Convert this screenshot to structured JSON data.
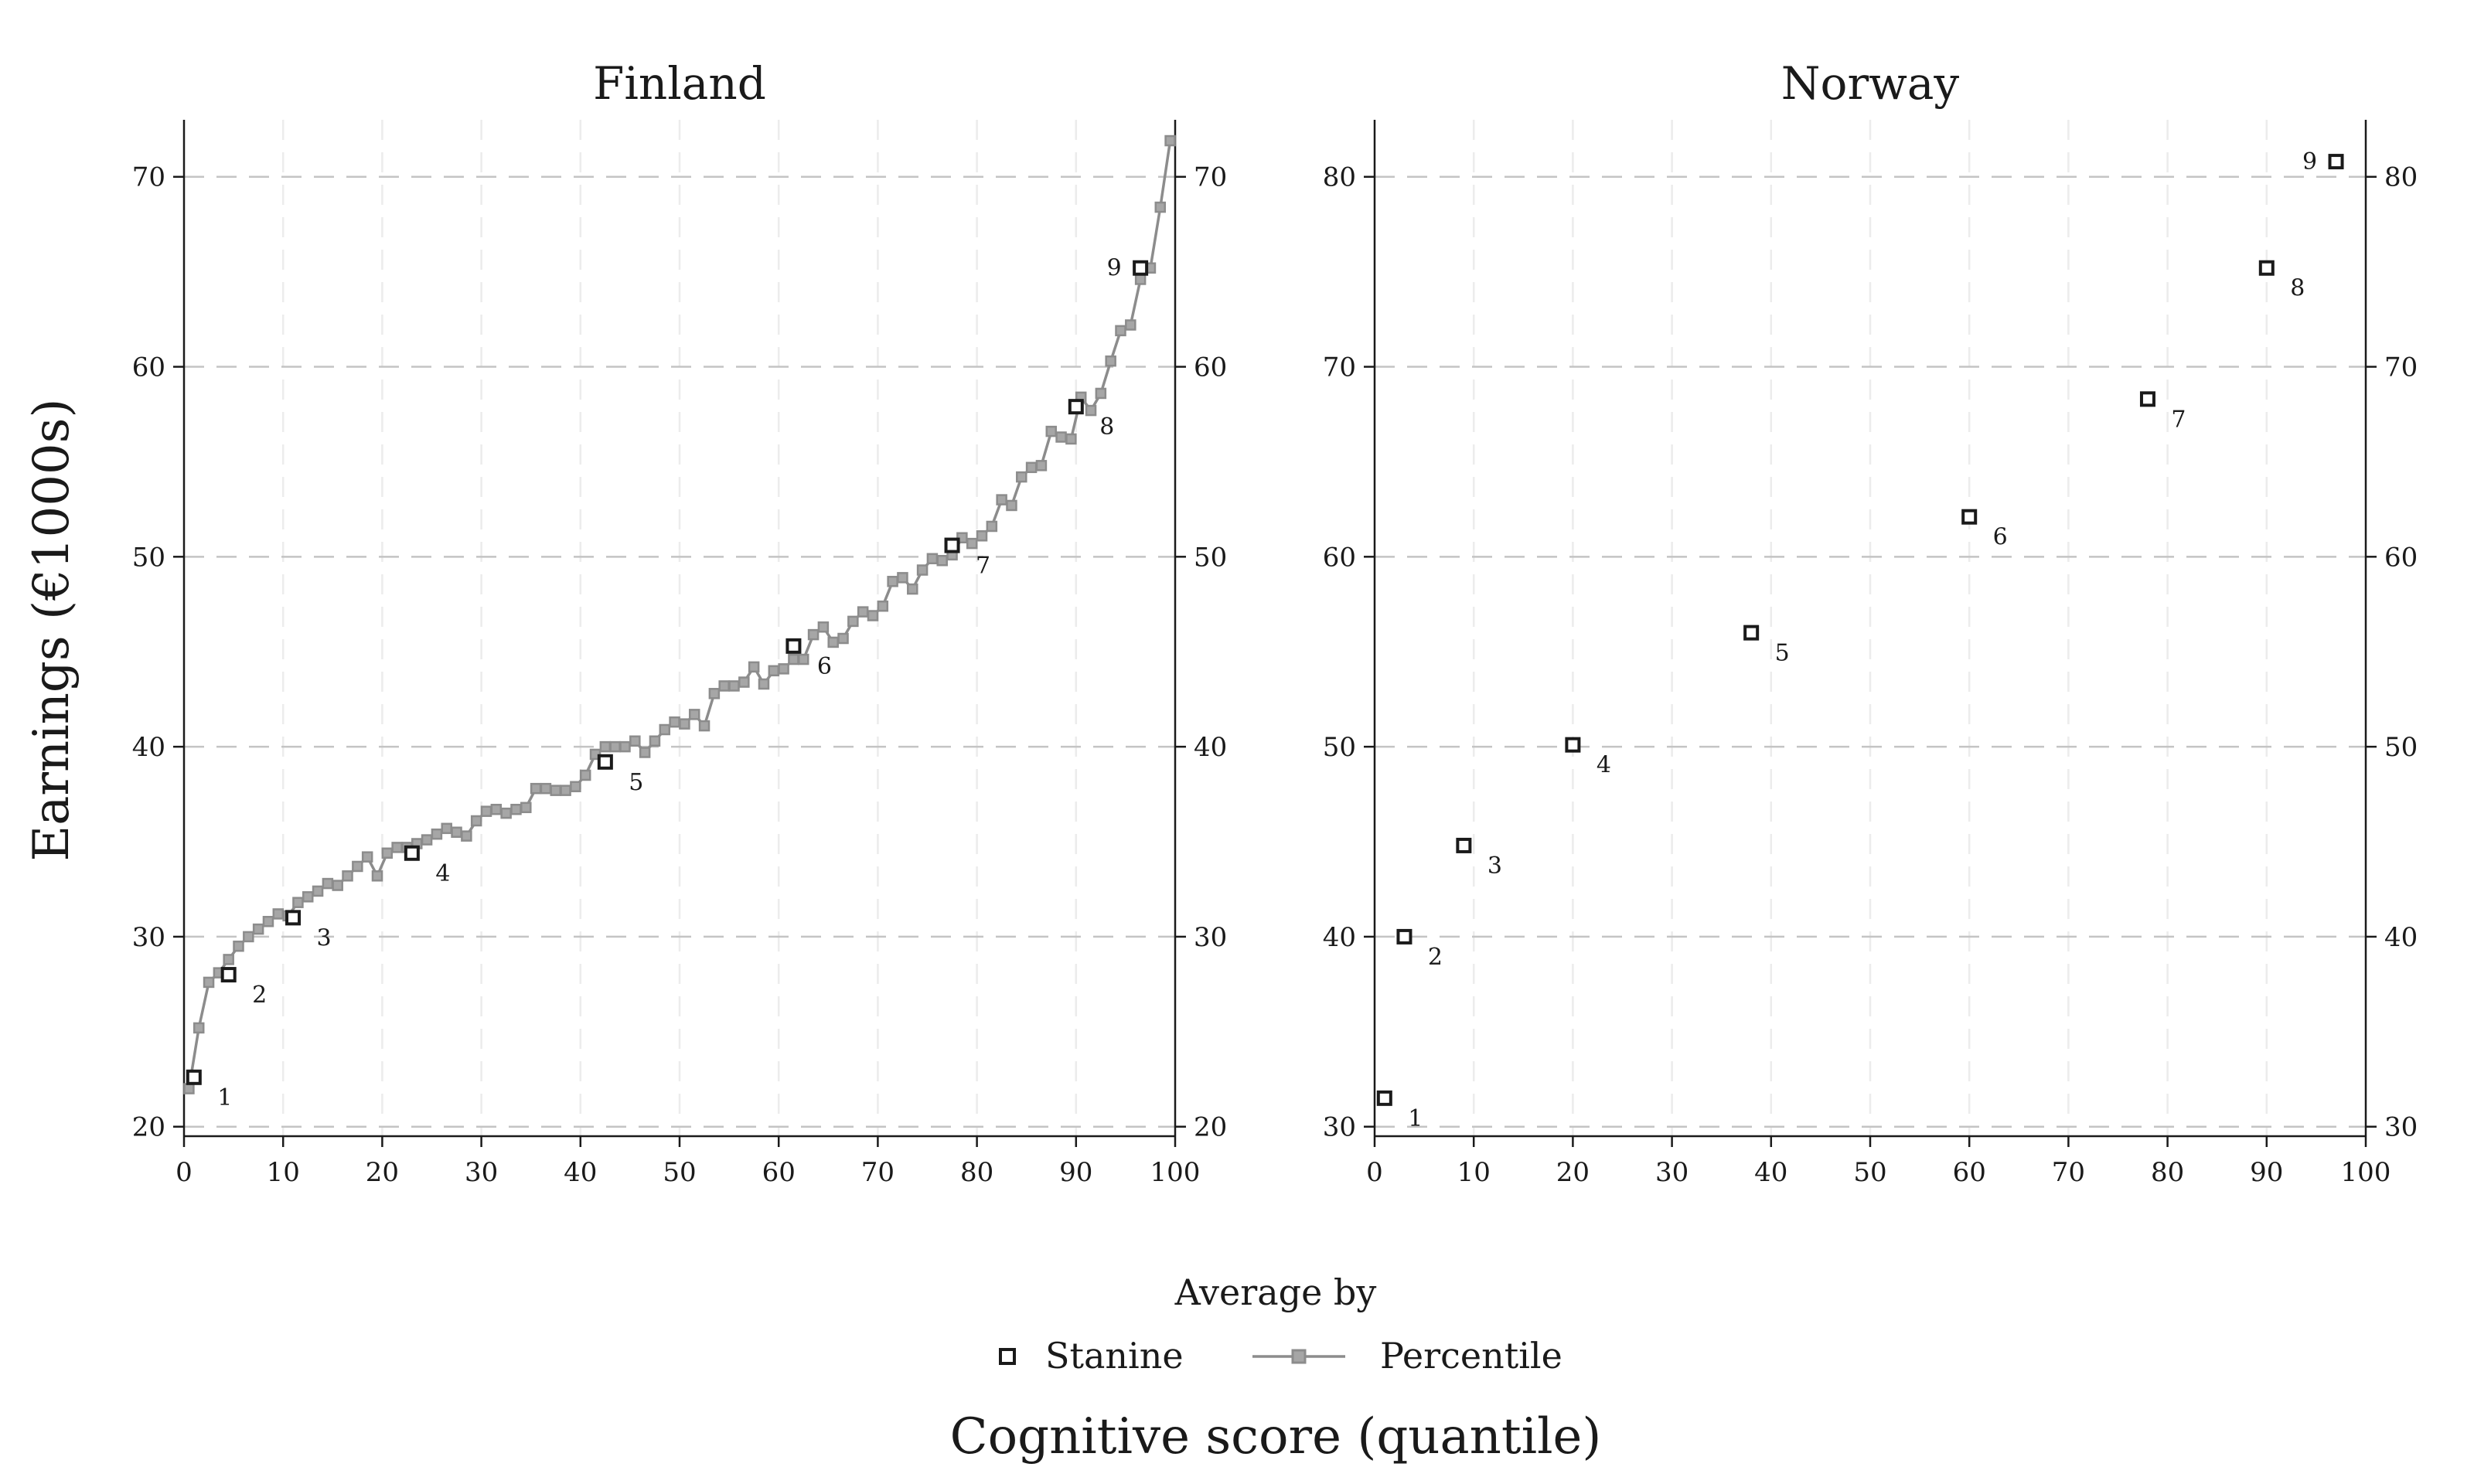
{
  "figure": {
    "ylabel": "Earnings (€1000s)",
    "xlabel": "Cognitive score (quantile)",
    "legend": {
      "title": "Average by",
      "placement": "bottom-center",
      "items": [
        {
          "label": "Stanine",
          "marker": "hollow-square"
        },
        {
          "label": "Percentile",
          "marker": "line-with-square"
        }
      ]
    },
    "colors": {
      "stanine": "#1a1a1a",
      "percentile": "#8c8c8c",
      "grid": "#c4c4c4",
      "axis": "#1a1a1a"
    }
  },
  "chart_data": [
    {
      "type": "line",
      "title": "Finland",
      "xlim": [
        0,
        100
      ],
      "ylim": [
        19.5,
        73
      ],
      "xticks": [
        0,
        10,
        20,
        30,
        40,
        50,
        60,
        70,
        80,
        90,
        100
      ],
      "yticks": [
        20,
        30,
        40,
        50,
        60,
        70
      ],
      "grid": true,
      "right_axis": true,
      "series": [
        {
          "name": "Stanine",
          "kind": "markers",
          "x": [
            1,
            4.5,
            11,
            23,
            42.5,
            61.5,
            77.5,
            90,
            96.5
          ],
          "y": [
            22.6,
            28.0,
            31.0,
            34.4,
            39.2,
            45.3,
            50.6,
            57.9,
            65.2
          ],
          "labels": [
            "1",
            "2",
            "3",
            "4",
            "5",
            "6",
            "7",
            "8",
            "9"
          ]
        },
        {
          "name": "Percentile",
          "kind": "line",
          "x": [
            0.5,
            1.5,
            2.5,
            3.5,
            4.5,
            5.5,
            6.5,
            7.5,
            8.5,
            9.5,
            10.5,
            11.5,
            12.5,
            13.5,
            14.5,
            15.5,
            16.5,
            17.5,
            18.5,
            19.5,
            20.5,
            21.5,
            22.5,
            23.5,
            24.5,
            25.5,
            26.5,
            27.5,
            28.5,
            29.5,
            30.5,
            31.5,
            32.5,
            33.5,
            34.5,
            35.5,
            36.5,
            37.5,
            38.5,
            39.5,
            40.5,
            41.5,
            42.5,
            43.5,
            44.5,
            45.5,
            46.5,
            47.5,
            48.5,
            49.5,
            50.5,
            51.5,
            52.5,
            53.5,
            54.5,
            55.5,
            56.5,
            57.5,
            58.5,
            59.5,
            60.5,
            61.5,
            62.5,
            63.5,
            64.5,
            65.5,
            66.5,
            67.5,
            68.5,
            69.5,
            70.5,
            71.5,
            72.5,
            73.5,
            74.5,
            75.5,
            76.5,
            77.5,
            78.5,
            79.5,
            80.5,
            81.5,
            82.5,
            83.5,
            84.5,
            85.5,
            86.5,
            87.5,
            88.5,
            89.5,
            90.5,
            91.5,
            92.5,
            93.5,
            94.5,
            95.5,
            96.5,
            97.5,
            98.5,
            99.5
          ],
          "y": [
            22.0,
            25.2,
            27.6,
            28.1,
            28.8,
            29.5,
            30.0,
            30.4,
            30.8,
            31.2,
            31.1,
            31.8,
            32.1,
            32.4,
            32.8,
            32.7,
            33.2,
            33.7,
            34.2,
            33.2,
            34.4,
            34.7,
            34.7,
            34.9,
            35.1,
            35.4,
            35.7,
            35.5,
            35.3,
            36.1,
            36.6,
            36.7,
            36.5,
            36.7,
            36.8,
            37.8,
            37.8,
            37.7,
            37.7,
            37.9,
            38.5,
            39.6,
            40.0,
            40.0,
            40.0,
            40.3,
            39.7,
            40.3,
            40.9,
            41.3,
            41.2,
            41.7,
            41.1,
            42.8,
            43.2,
            43.2,
            43.4,
            44.2,
            43.3,
            44.0,
            44.1,
            44.6,
            44.6,
            45.9,
            46.3,
            45.5,
            45.7,
            46.6,
            47.1,
            46.9,
            47.4,
            48.7,
            48.9,
            48.3,
            49.3,
            49.9,
            49.8,
            50.1,
            51.0,
            50.7,
            51.1,
            51.6,
            53.0,
            52.7,
            54.2,
            54.7,
            54.8,
            56.6,
            56.3,
            56.2,
            58.4,
            57.7,
            58.6,
            60.3,
            61.9,
            62.2,
            64.6,
            65.2,
            68.4,
            71.9
          ]
        }
      ]
    },
    {
      "type": "scatter",
      "title": "Norway",
      "xlim": [
        0,
        100
      ],
      "ylim": [
        29.5,
        83
      ],
      "xticks": [
        0,
        10,
        20,
        30,
        40,
        50,
        60,
        70,
        80,
        90,
        100
      ],
      "yticks": [
        30,
        40,
        50,
        60,
        70,
        80
      ],
      "grid": true,
      "right_axis": true,
      "series": [
        {
          "name": "Stanine",
          "kind": "markers",
          "x": [
            1,
            3,
            9,
            20,
            38,
            60,
            78,
            90,
            97
          ],
          "y": [
            31.5,
            40.0,
            44.8,
            50.1,
            56.0,
            62.1,
            68.3,
            75.2,
            80.8
          ],
          "labels": [
            "1",
            "2",
            "3",
            "4",
            "5",
            "6",
            "7",
            "8",
            "9"
          ]
        }
      ]
    }
  ]
}
